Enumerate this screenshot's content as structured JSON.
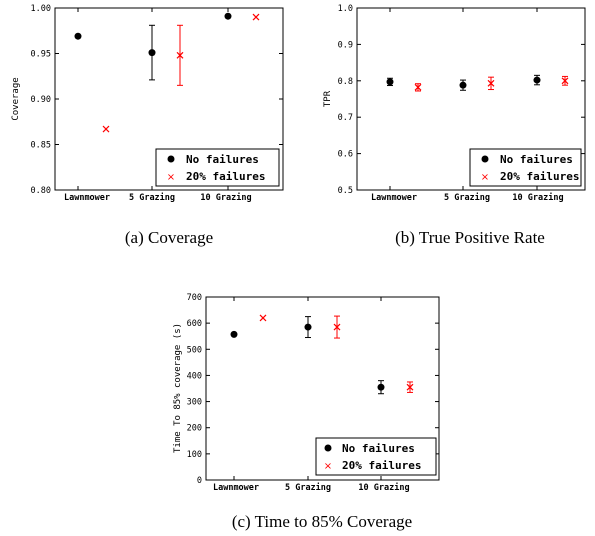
{
  "legend": {
    "no_failures": "No failures",
    "failures_20": "20% failures"
  },
  "colors": {
    "no_failures": "#000000",
    "failures_20": "#ff0000"
  },
  "chart_data": [
    {
      "id": "a",
      "type": "scatter",
      "caption": "(a) Coverage",
      "ylabel": "Coverage",
      "ylim": [
        0.8,
        1.0
      ],
      "yticks": [
        "0.80",
        "0.85",
        "0.90",
        "0.95",
        "1.00"
      ],
      "categories": [
        "Lawnmower",
        "5 Grazing",
        "10 Grazing"
      ],
      "legend_loc": "lower-right",
      "series": [
        {
          "name": "No failures",
          "values": [
            0.969,
            0.951,
            0.991
          ],
          "err": [
            0,
            0.03,
            0
          ]
        },
        {
          "name": "20% failures",
          "values": [
            0.867,
            0.948,
            0.99
          ],
          "err": [
            0,
            0.033,
            0
          ]
        }
      ]
    },
    {
      "id": "b",
      "type": "scatter",
      "caption": "(b) True Positive Rate",
      "ylabel": "TPR",
      "ylim": [
        0.5,
        1.0
      ],
      "yticks": [
        "0.5",
        "0.6",
        "0.7",
        "0.8",
        "0.9",
        "1.0"
      ],
      "categories": [
        "Lawnmower",
        "5 Grazing",
        "10 Grazing"
      ],
      "legend_loc": "lower-right",
      "series": [
        {
          "name": "No failures",
          "values": [
            0.797,
            0.788,
            0.802
          ],
          "err": [
            0.01,
            0.014,
            0.013
          ]
        },
        {
          "name": "20% failures",
          "values": [
            0.782,
            0.793,
            0.8
          ],
          "err": [
            0.01,
            0.017,
            0.012
          ]
        }
      ]
    },
    {
      "id": "c",
      "type": "scatter",
      "caption": "(c) Time to 85% Coverage",
      "ylabel": "Time To 85% coverage (s)",
      "ylim": [
        0,
        700
      ],
      "yticks": [
        "0",
        "100",
        "200",
        "300",
        "400",
        "500",
        "600",
        "700"
      ],
      "categories": [
        "Lawnmower",
        "5 Grazing",
        "10 Grazing"
      ],
      "legend_loc": "lower-right",
      "series": [
        {
          "name": "No failures",
          "values": [
            557,
            585,
            355
          ],
          "err": [
            0,
            40,
            25
          ]
        },
        {
          "name": "20% failures",
          "values": [
            620,
            585,
            355
          ],
          "err": [
            0,
            42,
            20
          ]
        }
      ]
    }
  ]
}
